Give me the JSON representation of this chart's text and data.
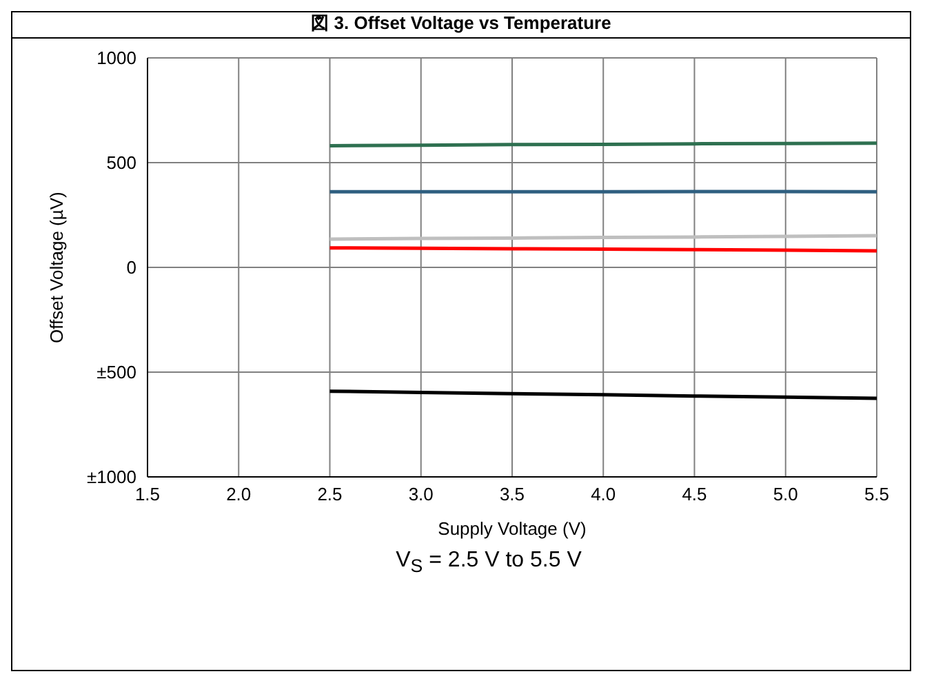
{
  "chart_data": {
    "type": "line",
    "title": "図 3. Offset Voltage vs Temperature",
    "xlabel": "Supply Voltage (V)",
    "ylabel": "Offset Voltage (µV)",
    "annotations": [
      "V$_{S}$ = 2.5 V to 5.5 V"
    ],
    "x": [
      2.5,
      3.0,
      3.5,
      4.0,
      4.5,
      5.0,
      5.5
    ],
    "series": [
      {
        "color": "#2e7050",
        "values": [
          581,
          583,
          586,
          587,
          590,
          591,
          593
        ]
      },
      {
        "color": "#2f5f80",
        "values": [
          361,
          361,
          361,
          361,
          362,
          362,
          361
        ]
      },
      {
        "color": "#bfbfbf",
        "values": [
          135,
          138,
          140,
          143,
          145,
          148,
          151
        ]
      },
      {
        "color": "#ff0000",
        "values": [
          93,
          91,
          89,
          87,
          85,
          82,
          79
        ]
      },
      {
        "color": "#000000",
        "values": [
          -591,
          -597,
          -603,
          -608,
          -614,
          -619,
          -625
        ]
      }
    ],
    "xlim": [
      1.5,
      5.5
    ],
    "xticks": [
      1.5,
      {
        "value": 2,
        "label": "2.0"
      },
      2.5,
      {
        "value": 3,
        "label": "3.0"
      },
      3.5,
      {
        "value": 4,
        "label": "4.0"
      },
      4.5,
      {
        "value": 5,
        "label": "5.0"
      },
      5.5
    ],
    "ylim": [
      -1000,
      1000
    ],
    "yticks": [
      {
        "value": -1000,
        "label": "±1000"
      },
      {
        "value": -500,
        "label": "±500"
      },
      0,
      500,
      1000
    ],
    "grid": true,
    "marker": "none",
    "line_style": "solid"
  }
}
